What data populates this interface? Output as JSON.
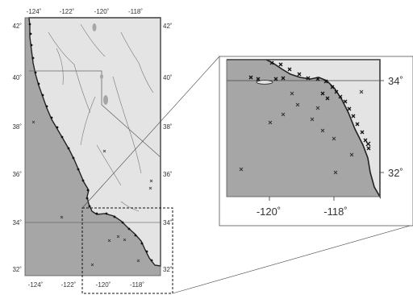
{
  "main_map": {
    "top_lon_labels": [
      "-124˚",
      "-122˚",
      "-120˚",
      "-118˚"
    ],
    "bottom_lon_labels": [
      "-124˚",
      "-122˚",
      "-120˚",
      "-118˚"
    ],
    "left_lat_labels": [
      "42˚",
      "40˚",
      "38˚",
      "36˚",
      "34˚",
      "32˚"
    ],
    "right_lat_labels": [
      "42˚",
      "40˚",
      "38˚",
      "36˚",
      "34˚",
      "32˚"
    ]
  },
  "inset_map": {
    "lon_labels": [
      "-120˚",
      "-118˚"
    ],
    "lat_labels": [
      "34˚",
      "32˚"
    ]
  },
  "colors": {
    "ocean": "#a6a6a6",
    "land": "#e4e4e4",
    "coast": "#222222",
    "frame": "#555555",
    "text": "#333333"
  }
}
